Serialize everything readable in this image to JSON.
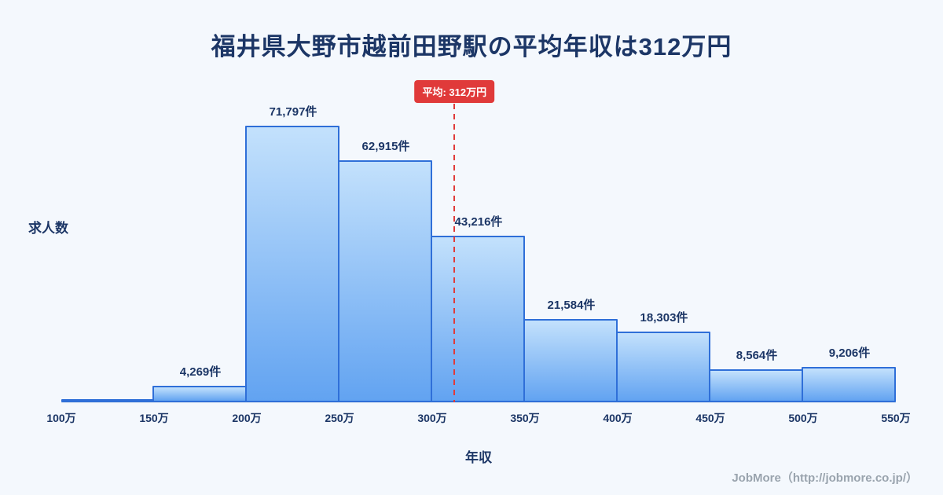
{
  "page": {
    "background": "#f4f8fd"
  },
  "title": {
    "text": "福井県大野市越前田野駅の平均年収は312万円",
    "color": "#1c3666"
  },
  "chart_data": {
    "type": "bar",
    "title": "福井県大野市越前田野駅の平均年収は312万円",
    "xlabel": "年収",
    "ylabel": "求人数",
    "categories": [
      "100万",
      "150万",
      "200万",
      "250万",
      "300万",
      "350万",
      "400万",
      "450万",
      "500万",
      "550万"
    ],
    "bin_ranges": [
      "100万-150万",
      "150万-200万",
      "200万-250万",
      "250万-300万",
      "300万-350万",
      "350万-400万",
      "400万-450万",
      "450万-500万",
      "500万-550万"
    ],
    "values": [
      0,
      4269,
      71797,
      62915,
      43216,
      21584,
      18303,
      8564,
      9206
    ],
    "labels": [
      "",
      "4,269件",
      "71,797件",
      "62,915件",
      "43,216件",
      "21,584件",
      "18,303件",
      "8,564件",
      "9,206件"
    ],
    "x_min": 100,
    "x_max": 550,
    "ylim": [
      0,
      80000
    ],
    "grid": false,
    "average": {
      "value": 312,
      "label": "平均: 312万円",
      "color": "#e03a3a"
    },
    "bar_fill_top": "#c3e1fc",
    "bar_fill_bottom": "#62a3f1",
    "bar_border": "#2f6fd8"
  },
  "footer": {
    "text": "JobMore（http://jobmore.co.jp/）"
  }
}
